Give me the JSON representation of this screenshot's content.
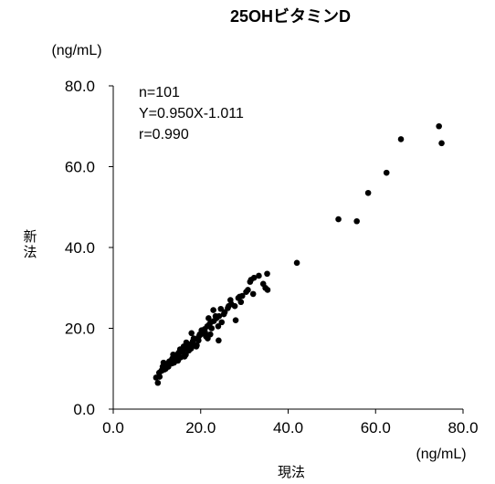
{
  "chart_data": {
    "type": "scatter",
    "title": "25OHビタミンD",
    "xlabel": "現法",
    "ylabel": "新法",
    "x_unit": "(ng/mL)",
    "y_unit": "(ng/mL)",
    "xlim": [
      0,
      80
    ],
    "ylim": [
      0,
      80
    ],
    "xticks": [
      "0.0",
      "20.0",
      "40.0",
      "60.0",
      "80.0"
    ],
    "yticks": [
      "0.0",
      "20.0",
      "40.0",
      "60.0",
      "80.0"
    ],
    "grid": false,
    "marker_color": "#000000",
    "annotation": [
      "n=101",
      "Y=0.950X-1.011",
      "r=0.990"
    ],
    "x": [
      9.8,
      10.2,
      10.6,
      11.0,
      11.3,
      11.7,
      12.1,
      12.4,
      12.8,
      13.2,
      13.5,
      13.9,
      14.2,
      14.6,
      15.0,
      15.4,
      15.8,
      16.2,
      16.6,
      17.0,
      17.4,
      17.8,
      18.2,
      18.7,
      19.1,
      19.6,
      20.0,
      20.5,
      21.0,
      21.5,
      22.0,
      22.5,
      23.0,
      23.6,
      24.2,
      24.8,
      25.5,
      26.2,
      27.0,
      27.8,
      28.6,
      29.5,
      30.4,
      31.3,
      32.2,
      33.3,
      34.3,
      35.2,
      11.5,
      12.6,
      13.7,
      14.8,
      16.1,
      17.3,
      18.4,
      19.5,
      20.7,
      21.8,
      22.9,
      24.0,
      25.3,
      26.8,
      28.0,
      29.2,
      30.8,
      32.0,
      34.8,
      12.0,
      13.1,
      15.3,
      16.7,
      17.9,
      19.0,
      20.2,
      21.2,
      22.3,
      23.4,
      24.6,
      26.4,
      28.9,
      31.5,
      10.5,
      14.0,
      18.0,
      22.2,
      19.8,
      21.6,
      35.3,
      42.0,
      51.5,
      55.7,
      58.3,
      62.5,
      65.8,
      74.5,
      75.1,
      11.1,
      16.3,
      13.4,
      24.1,
      20.9
    ],
    "y": [
      7.8,
      6.5,
      8.0,
      9.5,
      10.5,
      9.8,
      10.8,
      11.0,
      11.8,
      12.0,
      12.5,
      11.5,
      13.0,
      13.5,
      14.0,
      12.8,
      14.2,
      14.8,
      13.5,
      15.5,
      16.0,
      15.0,
      16.8,
      17.3,
      15.8,
      18.0,
      18.5,
      19.5,
      19.0,
      20.5,
      21.0,
      20.0,
      21.8,
      22.5,
      23.0,
      21.5,
      24.0,
      25.0,
      26.0,
      25.5,
      27.5,
      28.0,
      29.0,
      31.5,
      32.5,
      33.0,
      31.0,
      33.5,
      11.5,
      10.5,
      13.5,
      12.0,
      15.5,
      14.5,
      17.5,
      17.0,
      19.0,
      22.5,
      24.5,
      20.5,
      23.5,
      27.0,
      22.0,
      26.5,
      29.5,
      28.5,
      30.0,
      10.0,
      11.8,
      14.8,
      16.5,
      18.8,
      15.5,
      19.5,
      18.0,
      21.5,
      23.0,
      24.8,
      25.5,
      27.8,
      32.0,
      9.0,
      12.5,
      16.0,
      18.5,
      18.5,
      17.5,
      29.5,
      36.2,
      47.0,
      46.5,
      53.5,
      58.5,
      66.8,
      70.0,
      65.8,
      9.5,
      13.0,
      11.3,
      17.0,
      19.8
    ]
  }
}
